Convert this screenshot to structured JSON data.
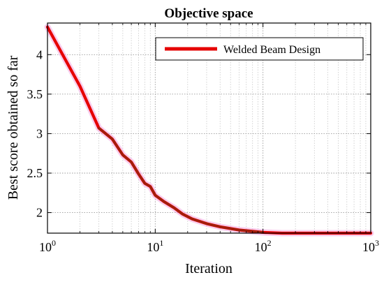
{
  "chart_data": {
    "type": "line",
    "title": "Objective space",
    "xlabel": "Iteration",
    "ylabel": "Best score obtained so far",
    "x_scale": "log",
    "xlim": [
      1,
      1000
    ],
    "ylim": [
      1.74,
      4.4
    ],
    "grid": true,
    "legend_position": "top-right",
    "x_ticks": [
      {
        "base": "10",
        "exp": "0",
        "value": 1
      },
      {
        "base": "10",
        "exp": "1",
        "value": 10
      },
      {
        "base": "10",
        "exp": "2",
        "value": 100
      },
      {
        "base": "10",
        "exp": "3",
        "value": 1000
      }
    ],
    "y_ticks": [
      {
        "label": "2",
        "value": 2
      },
      {
        "label": "2.5",
        "value": 2.5
      },
      {
        "label": "3",
        "value": 3
      },
      {
        "label": "3.5",
        "value": 3.5
      },
      {
        "label": "4",
        "value": 4
      }
    ],
    "series": [
      {
        "name": "Welded Beam Design",
        "color": "#e60000",
        "x": [
          1,
          2,
          3,
          4,
          5,
          6,
          7,
          8,
          9,
          10,
          12,
          15,
          18,
          22,
          30,
          40,
          60,
          100,
          150,
          200,
          300,
          500,
          1000
        ],
        "y": [
          4.35,
          3.6,
          3.07,
          2.93,
          2.73,
          2.64,
          2.49,
          2.37,
          2.33,
          2.22,
          2.14,
          2.06,
          1.98,
          1.92,
          1.86,
          1.82,
          1.78,
          1.75,
          1.74,
          1.74,
          1.74,
          1.74,
          1.74
        ]
      }
    ]
  }
}
